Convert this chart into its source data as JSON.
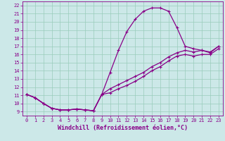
{
  "xlabel": "Windchill (Refroidissement éolien,°C)",
  "bg_color": "#cce8e8",
  "line_color": "#880088",
  "xlim": [
    -0.5,
    23.5
  ],
  "ylim": [
    8.5,
    22.5
  ],
  "xticks": [
    0,
    1,
    2,
    3,
    4,
    5,
    6,
    7,
    8,
    9,
    10,
    11,
    12,
    13,
    14,
    15,
    16,
    17,
    18,
    19,
    20,
    21,
    22,
    23
  ],
  "yticks": [
    9,
    10,
    11,
    12,
    13,
    14,
    15,
    16,
    17,
    18,
    19,
    20,
    21,
    22
  ],
  "line1_x": [
    0,
    1,
    2,
    3,
    4,
    5,
    6,
    7,
    8,
    9,
    10,
    11,
    12,
    13,
    14,
    15,
    16,
    17,
    18,
    19,
    20,
    21,
    22,
    23
  ],
  "line1_y": [
    11.1,
    10.7,
    10.0,
    9.4,
    9.2,
    9.2,
    9.3,
    9.2,
    9.1,
    11.1,
    13.8,
    16.5,
    18.8,
    20.3,
    21.3,
    21.7,
    21.7,
    21.3,
    19.3,
    17.0,
    16.7,
    16.5,
    16.2,
    17.0
  ],
  "line2_x": [
    0,
    1,
    2,
    3,
    4,
    5,
    6,
    7,
    8,
    9,
    10,
    11,
    12,
    13,
    14,
    15,
    16,
    17,
    18,
    19,
    20,
    21,
    22,
    23
  ],
  "line2_y": [
    11.1,
    10.7,
    10.0,
    9.4,
    9.2,
    9.2,
    9.3,
    9.2,
    9.1,
    11.1,
    11.8,
    12.3,
    12.8,
    13.3,
    13.8,
    14.5,
    15.0,
    15.7,
    16.2,
    16.5,
    16.3,
    16.5,
    16.3,
    17.0
  ],
  "line3_x": [
    0,
    1,
    2,
    3,
    4,
    5,
    6,
    7,
    8,
    9,
    10,
    11,
    12,
    13,
    14,
    15,
    16,
    17,
    18,
    19,
    20,
    21,
    22,
    23
  ],
  "line3_y": [
    11.1,
    10.7,
    10.0,
    9.4,
    9.2,
    9.2,
    9.3,
    9.2,
    9.1,
    11.1,
    11.3,
    11.8,
    12.2,
    12.7,
    13.3,
    14.0,
    14.5,
    15.2,
    15.8,
    16.0,
    15.8,
    16.0,
    16.0,
    16.7
  ],
  "marker": "+",
  "markersize": 3.5,
  "linewidth": 0.9,
  "tick_fontsize": 5.0,
  "label_fontsize": 6.0,
  "grid_color": "#99ccbb",
  "grid_linewidth": 0.5
}
